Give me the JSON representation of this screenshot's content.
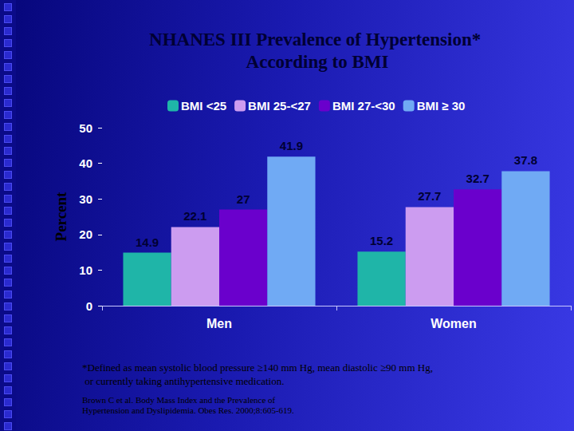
{
  "chart_data": {
    "type": "bar",
    "title": "NHANES III Prevalence of Hypertension* According to BMI",
    "y_label": "Percent",
    "categories": [
      "Men",
      "Women"
    ],
    "series": [
      {
        "name": "BMI <25",
        "color": "#1fb5a8",
        "values": [
          14.9,
          15.2
        ]
      },
      {
        "name": "BMI 25-<27",
        "color": "#cc9cf0",
        "values": [
          22.1,
          27.7
        ]
      },
      {
        "name": "BMI 27-<30",
        "color": "#6a00cc",
        "values": [
          27,
          32.7
        ]
      },
      {
        "name": "BMI ≥ 30",
        "color": "#70aaf4",
        "values": [
          41.9,
          37.8
        ]
      }
    ],
    "ylim": [
      0,
      50
    ],
    "yticks": [
      0,
      10,
      20,
      30,
      40,
      50
    ],
    "grid": false,
    "legend": "top",
    "data_labels": true,
    "annotations": [
      "*Defined as mean systolic blood pressure ≥140 mm Hg, mean diastolic ≥90 mm Hg, or currently taking antihypertensive medication.",
      "Brown C et al. Body Mass Index and the Prevalence of Hypertension and Dyslipidemia. Obes Res. 2000;8:605-619."
    ]
  }
}
